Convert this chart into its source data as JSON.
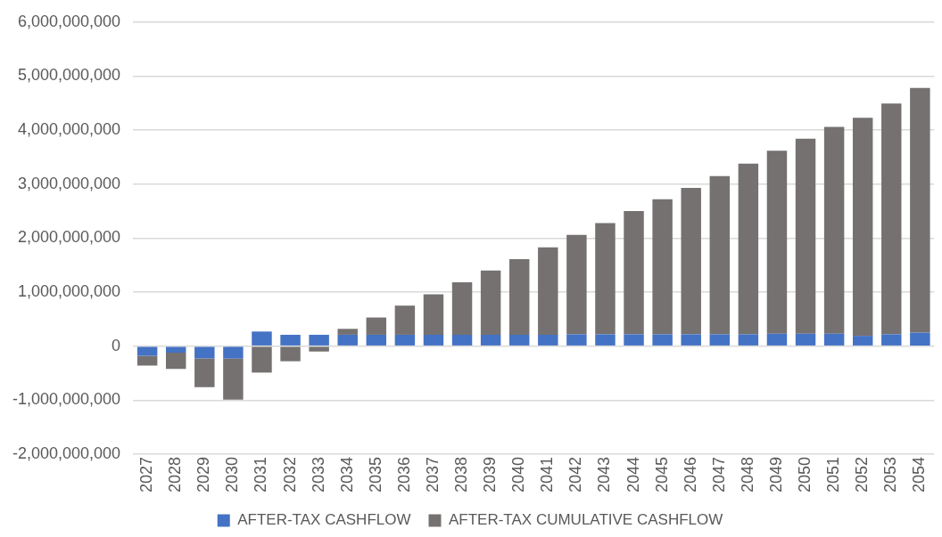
{
  "chart_data": {
    "type": "bar",
    "stacked": true,
    "categories": [
      "2027",
      "2028",
      "2029",
      "2030",
      "2031",
      "2032",
      "2033",
      "2034",
      "2035",
      "2036",
      "2037",
      "2038",
      "2039",
      "2040",
      "2041",
      "2042",
      "2043",
      "2044",
      "2045",
      "2046",
      "2047",
      "2048",
      "2049",
      "2050",
      "2051",
      "2052",
      "2053",
      "2054"
    ],
    "series": [
      {
        "name": "AFTER-TAX CASHFLOW",
        "color": "#4472c4",
        "values": [
          -180000000,
          -120000000,
          -230000000,
          -230000000,
          270000000,
          210000000,
          210000000,
          210000000,
          210000000,
          210000000,
          210000000,
          210000000,
          210000000,
          210000000,
          210000000,
          220000000,
          220000000,
          220000000,
          220000000,
          220000000,
          220000000,
          220000000,
          230000000,
          230000000,
          230000000,
          190000000,
          220000000,
          250000000
        ]
      },
      {
        "name": "AFTER-TAX CUMULATIVE CASHFLOW",
        "color": "#767171",
        "values": [
          -180000000,
          -300000000,
          -530000000,
          -760000000,
          -490000000,
          -280000000,
          -100000000,
          110000000,
          320000000,
          540000000,
          750000000,
          970000000,
          1190000000,
          1400000000,
          1620000000,
          1840000000,
          2060000000,
          2280000000,
          2500000000,
          2710000000,
          2930000000,
          3160000000,
          3390000000,
          3610000000,
          3830000000,
          4040000000,
          4270000000,
          4530000000
        ]
      }
    ],
    "ylim": [
      -2000000000,
      6000000000
    ],
    "yticks": [
      {
        "value": -2000000000,
        "label": "-2,000,000,000"
      },
      {
        "value": -1000000000,
        "label": "-1,000,000,000"
      },
      {
        "value": 0,
        "label": "0"
      },
      {
        "value": 1000000000,
        "label": "1,000,000,000"
      },
      {
        "value": 2000000000,
        "label": "2,000,000,000"
      },
      {
        "value": 3000000000,
        "label": "3,000,000,000"
      },
      {
        "value": 4000000000,
        "label": "4,000,000,000"
      },
      {
        "value": 5000000000,
        "label": "5,000,000,000"
      },
      {
        "value": 6000000000,
        "label": "6,000,000,000"
      }
    ],
    "grid": "y",
    "legend": "bottom"
  }
}
